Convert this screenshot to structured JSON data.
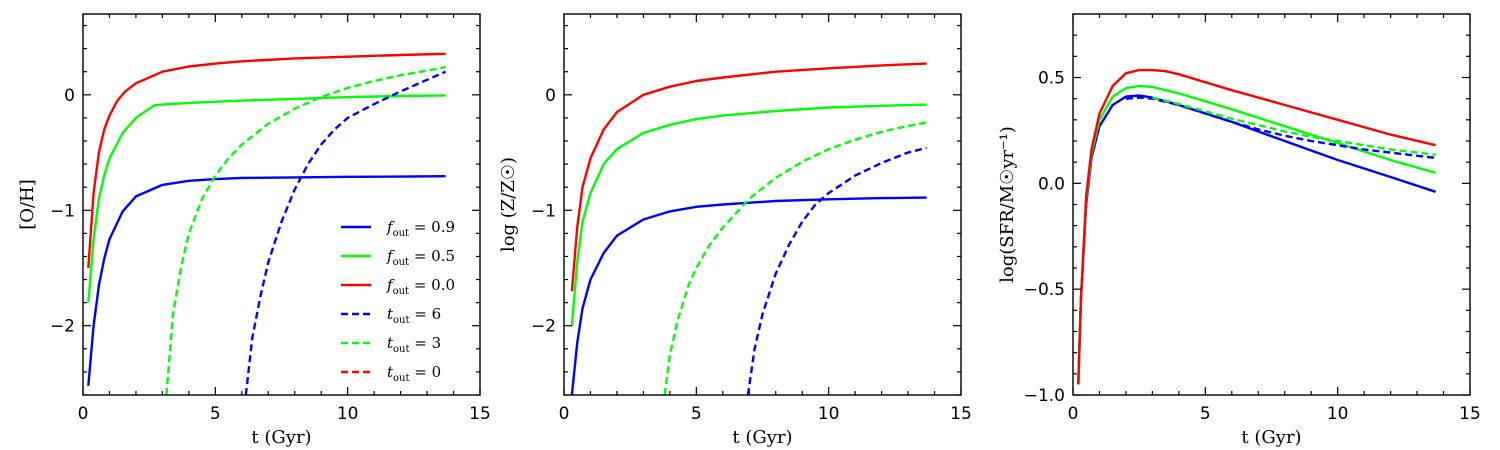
{
  "chart_data": [
    {
      "type": "line",
      "xlabel": "t (Gyr)",
      "ylabel": "[O/H]",
      "xlim": [
        0,
        15
      ],
      "ylim": [
        -2.6,
        0.7
      ],
      "xticks": [
        0,
        5,
        10,
        15
      ],
      "yticks": [
        -2,
        -1,
        0
      ],
      "series": [
        {
          "name": "f_out = 0.9",
          "color": "#0000ff",
          "dash": false,
          "x": [
            0.2,
            0.4,
            0.6,
            0.8,
            1.0,
            1.5,
            2.0,
            3.0,
            4.0,
            5.0,
            6.0,
            8.0,
            10.0,
            12.0,
            13.7
          ],
          "y": [
            -2.52,
            -2.0,
            -1.65,
            -1.42,
            -1.25,
            -1.01,
            -0.88,
            -0.78,
            -0.745,
            -0.73,
            -0.72,
            -0.715,
            -0.71,
            -0.708,
            -0.705
          ]
        },
        {
          "name": "f_out = 0.5",
          "color": "#00ff00",
          "dash": false,
          "x": [
            0.2,
            0.4,
            0.6,
            0.8,
            1.0,
            1.5,
            2.0,
            2.5,
            2.7,
            3.0,
            4.0,
            6.0,
            8.0,
            10.0,
            12.0,
            13.7
          ],
          "y": [
            -1.8,
            -1.25,
            -0.9,
            -0.7,
            -0.55,
            -0.33,
            -0.2,
            -0.12,
            -0.09,
            -0.085,
            -0.07,
            -0.05,
            -0.035,
            -0.02,
            -0.01,
            -0.005
          ]
        },
        {
          "name": "f_out = 0.0",
          "color": "#ff0000",
          "dash": false,
          "x": [
            0.2,
            0.4,
            0.6,
            0.8,
            1.0,
            1.3,
            1.6,
            2.0,
            3.0,
            4.0,
            5.0,
            6.0,
            8.0,
            10.0,
            12.0,
            13.7
          ],
          "y": [
            -1.5,
            -0.85,
            -0.5,
            -0.3,
            -0.18,
            -0.05,
            0.03,
            0.1,
            0.2,
            0.245,
            0.27,
            0.29,
            0.315,
            0.33,
            0.345,
            0.355
          ]
        },
        {
          "name": "t_out = 6",
          "color": "#0000ff",
          "dash": true,
          "x": [
            6.15,
            6.4,
            6.7,
            7.0,
            7.5,
            8.0,
            8.5,
            9.0,
            9.5,
            10.0,
            11.0,
            12.0,
            13.0,
            13.7
          ],
          "y": [
            -2.6,
            -2.1,
            -1.75,
            -1.45,
            -1.1,
            -0.82,
            -0.6,
            -0.43,
            -0.3,
            -0.2,
            -0.08,
            0.03,
            0.13,
            0.2
          ]
        },
        {
          "name": "t_out = 3",
          "color": "#00ff00",
          "dash": true,
          "x": [
            3.15,
            3.4,
            3.7,
            4.0,
            4.5,
            5.0,
            5.5,
            6.0,
            7.0,
            8.0,
            9.0,
            10.0,
            11.0,
            12.0,
            13.0,
            13.7
          ],
          "y": [
            -2.6,
            -1.9,
            -1.5,
            -1.2,
            -0.9,
            -0.7,
            -0.55,
            -0.43,
            -0.25,
            -0.12,
            -0.02,
            0.06,
            0.12,
            0.17,
            0.21,
            0.24
          ]
        },
        {
          "name": "t_out = 0",
          "color": "#ff0000",
          "dash": true,
          "x": [],
          "y": []
        }
      ],
      "legend": {
        "placement": "lower-right",
        "entries": [
          {
            "label": "f",
            "sub": "out",
            "rest": " = 0.9",
            "color": "#0000ff",
            "dash": false
          },
          {
            "label": "f",
            "sub": "out",
            "rest": " = 0.5",
            "color": "#00ff00",
            "dash": false
          },
          {
            "label": "f",
            "sub": "out",
            "rest": " = 0.0",
            "color": "#ff0000",
            "dash": false
          },
          {
            "label": "t",
            "sub": "out",
            "rest": " = 6",
            "color": "#0000ff",
            "dash": true
          },
          {
            "label": "t",
            "sub": "out",
            "rest": " = 3",
            "color": "#00ff00",
            "dash": true
          },
          {
            "label": "t",
            "sub": "out",
            "rest": " = 0",
            "color": "#ff0000",
            "dash": true
          }
        ]
      }
    },
    {
      "type": "line",
      "xlabel": "t (Gyr)",
      "ylabel": "log (Z/Z☉)",
      "xlim": [
        0,
        15
      ],
      "ylim": [
        -2.6,
        0.7
      ],
      "xticks": [
        0,
        5,
        10,
        15
      ],
      "yticks": [
        -2,
        -1,
        0
      ],
      "series": [
        {
          "name": "f_out = 0.9",
          "color": "#0000ff",
          "dash": false,
          "x": [
            0.3,
            0.5,
            0.7,
            1.0,
            1.5,
            2.0,
            3.0,
            4.0,
            5.0,
            6.0,
            8.0,
            10.0,
            12.0,
            13.7
          ],
          "y": [
            -2.6,
            -2.15,
            -1.85,
            -1.6,
            -1.37,
            -1.22,
            -1.08,
            -1.01,
            -0.97,
            -0.95,
            -0.92,
            -0.905,
            -0.895,
            -0.89
          ]
        },
        {
          "name": "f_out = 0.5",
          "color": "#00ff00",
          "dash": false,
          "x": [
            0.3,
            0.5,
            0.7,
            1.0,
            1.5,
            2.0,
            3.0,
            4.0,
            5.0,
            6.0,
            8.0,
            10.0,
            12.0,
            13.7
          ],
          "y": [
            -2.0,
            -1.45,
            -1.1,
            -0.85,
            -0.6,
            -0.47,
            -0.33,
            -0.26,
            -0.21,
            -0.18,
            -0.14,
            -0.11,
            -0.095,
            -0.085
          ]
        },
        {
          "name": "f_out = 0.0",
          "color": "#ff0000",
          "dash": false,
          "x": [
            0.3,
            0.5,
            0.7,
            1.0,
            1.5,
            2.0,
            3.0,
            4.0,
            5.0,
            6.0,
            8.0,
            10.0,
            12.0,
            13.7
          ],
          "y": [
            -1.7,
            -1.15,
            -0.8,
            -0.55,
            -0.3,
            -0.15,
            0.0,
            0.07,
            0.12,
            0.15,
            0.2,
            0.23,
            0.255,
            0.27
          ]
        },
        {
          "name": "t_out = 6",
          "color": "#0000ff",
          "dash": true,
          "x": [
            6.95,
            7.2,
            7.5,
            8.0,
            8.5,
            9.0,
            9.5,
            10.0,
            11.0,
            12.0,
            13.0,
            13.7
          ],
          "y": [
            -2.6,
            -2.2,
            -1.9,
            -1.55,
            -1.3,
            -1.1,
            -0.95,
            -0.85,
            -0.7,
            -0.59,
            -0.5,
            -0.46
          ]
        },
        {
          "name": "t_out = 3",
          "color": "#00ff00",
          "dash": true,
          "x": [
            3.8,
            4.0,
            4.3,
            4.7,
            5.0,
            5.5,
            6.0,
            7.0,
            8.0,
            9.0,
            10.0,
            11.0,
            12.0,
            13.0,
            13.7
          ],
          "y": [
            -2.6,
            -2.25,
            -1.95,
            -1.65,
            -1.5,
            -1.3,
            -1.15,
            -0.9,
            -0.72,
            -0.58,
            -0.47,
            -0.39,
            -0.32,
            -0.27,
            -0.24
          ]
        }
      ]
    },
    {
      "type": "line",
      "xlabel": "t (Gyr)",
      "ylabel": "log(SFR/M☉yr⁻¹)",
      "xlim": [
        0,
        15
      ],
      "ylim": [
        -1.0,
        0.8
      ],
      "xticks": [
        0,
        5,
        10,
        15
      ],
      "yticks": [
        -1.0,
        -0.5,
        0.0,
        0.5
      ],
      "series": [
        {
          "name": "f_out = 0.9",
          "color": "#0000ff",
          "dash": false,
          "x": [
            0.2,
            0.3,
            0.5,
            0.7,
            1.0,
            1.5,
            2.0,
            2.5,
            3.0,
            4.0,
            6.0,
            8.0,
            10.0,
            12.0,
            13.7
          ],
          "y": [
            -0.95,
            -0.55,
            -0.1,
            0.12,
            0.27,
            0.37,
            0.41,
            0.415,
            0.405,
            0.37,
            0.29,
            0.2,
            0.11,
            0.03,
            -0.04
          ]
        },
        {
          "name": "f_out = 0.5",
          "color": "#00ff00",
          "dash": false,
          "x": [
            0.2,
            0.3,
            0.5,
            0.7,
            1.0,
            1.5,
            2.0,
            2.5,
            3.0,
            4.0,
            6.0,
            8.0,
            10.0,
            12.0,
            13.7
          ],
          "y": [
            -0.95,
            -0.55,
            -0.08,
            0.14,
            0.3,
            0.41,
            0.45,
            0.46,
            0.455,
            0.425,
            0.35,
            0.27,
            0.19,
            0.11,
            0.05
          ]
        },
        {
          "name": "f_out = 0.0",
          "color": "#ff0000",
          "dash": false,
          "x": [
            0.2,
            0.3,
            0.5,
            0.7,
            1.0,
            1.5,
            2.0,
            2.5,
            3.0,
            3.5,
            4.0,
            6.0,
            8.0,
            10.0,
            12.0,
            13.7
          ],
          "y": [
            -0.95,
            -0.55,
            -0.06,
            0.16,
            0.33,
            0.46,
            0.52,
            0.535,
            0.535,
            0.53,
            0.515,
            0.44,
            0.37,
            0.3,
            0.23,
            0.18
          ]
        },
        {
          "name": "t_out = 6",
          "color": "#0000ff",
          "dash": true,
          "x": [
            2.0,
            2.5,
            3.0,
            4.0,
            5.0,
            6.0,
            7.0,
            8.0,
            9.0,
            10.0,
            11.0,
            12.0,
            13.0,
            13.7
          ],
          "y": [
            0.4,
            0.405,
            0.4,
            0.37,
            0.33,
            0.29,
            0.255,
            0.225,
            0.2,
            0.18,
            0.16,
            0.145,
            0.13,
            0.12
          ]
        },
        {
          "name": "t_out = 3",
          "color": "#00ff00",
          "dash": true,
          "x": [
            3.0,
            4.0,
            5.0,
            6.0,
            7.0,
            8.0,
            9.0,
            10.0,
            11.0,
            12.0,
            13.0,
            13.7
          ],
          "y": [
            0.405,
            0.375,
            0.34,
            0.305,
            0.275,
            0.245,
            0.22,
            0.2,
            0.18,
            0.16,
            0.145,
            0.135
          ]
        }
      ]
    }
  ]
}
